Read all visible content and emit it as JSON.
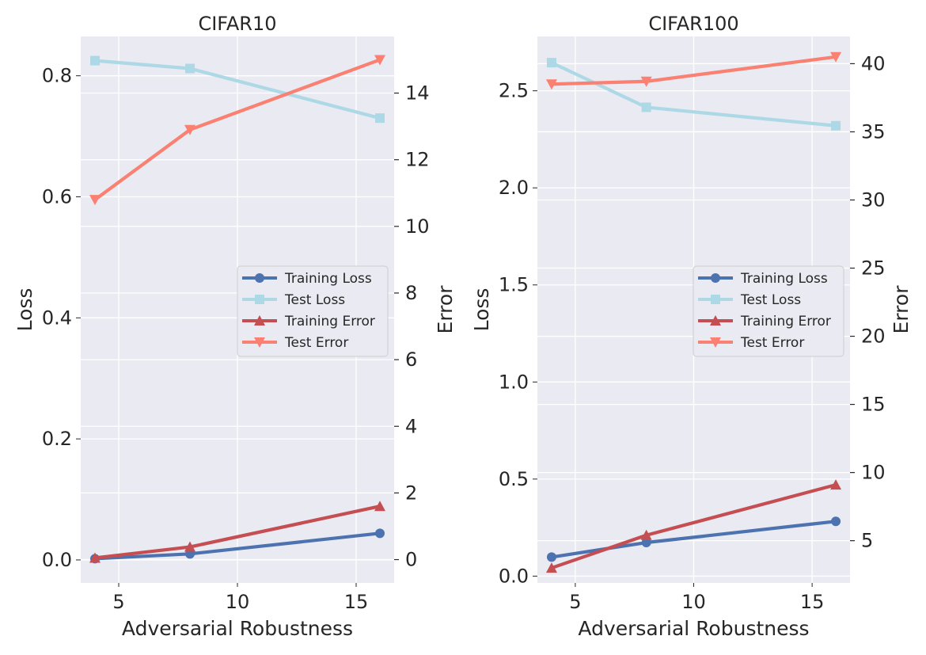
{
  "chart_data": [
    {
      "type": "line",
      "title": "CIFAR10",
      "xlabel": "Adversarial Robustness",
      "ylabel": "Loss",
      "ylabel_right": "Error",
      "x": [
        4,
        8,
        16
      ],
      "xlim": [
        3.4,
        16.6
      ],
      "xticks": [
        5,
        10,
        15
      ],
      "xtick_labels": [
        "5",
        "10",
        "15"
      ],
      "ylim_left": [
        -0.038,
        0.865
      ],
      "yticks_left": [
        0.0,
        0.2,
        0.4,
        0.6,
        0.8
      ],
      "ytick_labels_left": [
        "0.0",
        "0.2",
        "0.4",
        "0.6",
        "0.8"
      ],
      "ylim_right": [
        -0.7,
        15.7
      ],
      "yticks_right": [
        0,
        2,
        4,
        6,
        8,
        10,
        12,
        14
      ],
      "ytick_labels_right": [
        "0",
        "2",
        "4",
        "6",
        "8",
        "10",
        "12",
        "14"
      ],
      "legend_position": "center-right",
      "series": [
        {
          "name": "Training Loss",
          "axis": "left",
          "color": "#4c72b0",
          "marker": "circle",
          "values": [
            0.002,
            0.01,
            0.044
          ]
        },
        {
          "name": "Test Loss",
          "axis": "left",
          "color": "#add8e6",
          "marker": "square",
          "values": [
            0.825,
            0.812,
            0.73
          ]
        },
        {
          "name": "Training Error",
          "axis": "right",
          "color": "#c44e52",
          "marker": "triangle-up",
          "values": [
            0.05,
            0.38,
            1.6
          ]
        },
        {
          "name": "Test Error",
          "axis": "right",
          "color": "#fa8072",
          "marker": "triangle-down",
          "values": [
            10.8,
            12.9,
            15.0
          ]
        }
      ]
    },
    {
      "type": "line",
      "title": "CIFAR100",
      "xlabel": "Adversarial Robustness",
      "ylabel": "Loss",
      "ylabel_right": "Error",
      "x": [
        4,
        8,
        16
      ],
      "xlim": [
        3.4,
        16.6
      ],
      "xticks": [
        5,
        10,
        15
      ],
      "xtick_labels": [
        "5",
        "10",
        "15"
      ],
      "ylim_left": [
        -0.035,
        2.78
      ],
      "yticks_left": [
        0.0,
        0.5,
        1.0,
        1.5,
        2.0,
        2.5
      ],
      "ytick_labels_left": [
        "0.0",
        "0.5",
        "1.0",
        "1.5",
        "2.0",
        "2.5"
      ],
      "ylim_right": [
        1.9,
        42.0
      ],
      "yticks_right": [
        5,
        10,
        15,
        20,
        25,
        30,
        35,
        40
      ],
      "ytick_labels_right": [
        "5",
        "10",
        "15",
        "20",
        "25",
        "30",
        "35",
        "40"
      ],
      "legend_position": "center-right",
      "series": [
        {
          "name": "Training Loss",
          "axis": "left",
          "color": "#4c72b0",
          "marker": "circle",
          "values": [
            0.098,
            0.173,
            0.282
          ]
        },
        {
          "name": "Test Loss",
          "axis": "left",
          "color": "#add8e6",
          "marker": "square",
          "values": [
            2.645,
            2.415,
            2.32
          ]
        },
        {
          "name": "Training Error",
          "axis": "right",
          "color": "#c44e52",
          "marker": "triangle-up",
          "values": [
            3.0,
            5.4,
            9.1
          ]
        },
        {
          "name": "Test Error",
          "axis": "right",
          "color": "#fa8072",
          "marker": "triangle-down",
          "values": [
            38.5,
            38.7,
            40.5
          ]
        }
      ]
    }
  ]
}
